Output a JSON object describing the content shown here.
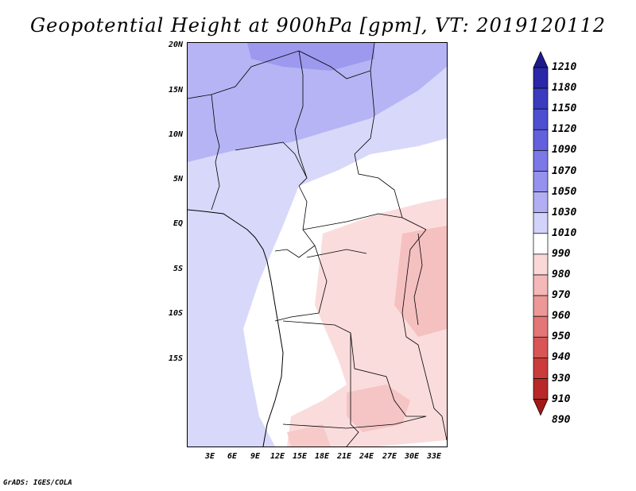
{
  "title": "Geopotential Height at 900hPa [gpm], VT: 2019120112",
  "footer": "GrADS: IGES/COLA",
  "map": {
    "lat_labels": [
      "20N",
      "15N",
      "10N",
      "5N",
      "EQ",
      "5S",
      "10S",
      "15S"
    ],
    "lon_labels": [
      "3E",
      "6E",
      "9E",
      "12E",
      "15E",
      "18E",
      "21E",
      "24E",
      "27E",
      "30E",
      "33E"
    ]
  },
  "colorbar": {
    "levels": [
      "1210",
      "1180",
      "1150",
      "1120",
      "1090",
      "1070",
      "1050",
      "1030",
      "1010",
      "990",
      "980",
      "970",
      "960",
      "950",
      "940",
      "930",
      "910",
      "890"
    ],
    "colors": [
      "#1e1a8c",
      "#2a27a8",
      "#3b3bc0",
      "#4d4fd0",
      "#6360de",
      "#7b78e8",
      "#9592ee",
      "#b1aef4",
      "#d2d2fa",
      "#ffffff",
      "#fbd8d8",
      "#f4b8b8",
      "#ec9898",
      "#e37676",
      "#d85656",
      "#cb3b3b",
      "#b82828",
      "#a01818"
    ]
  }
}
